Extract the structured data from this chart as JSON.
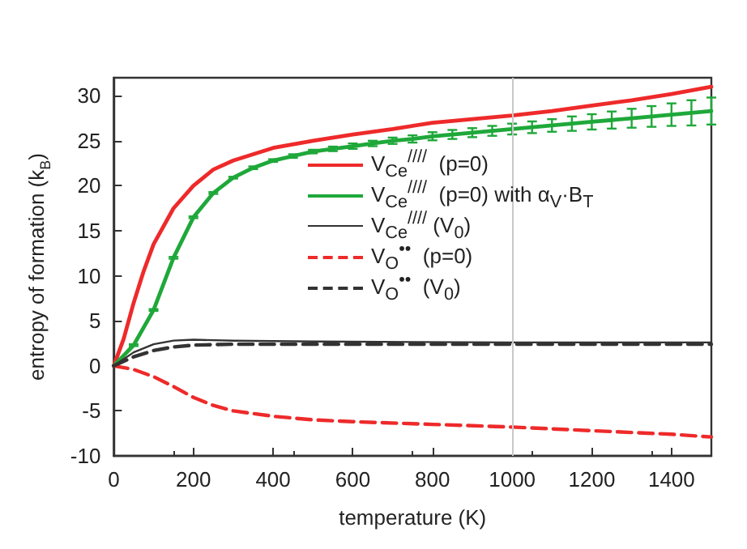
{
  "chart_data": {
    "type": "line",
    "xlabel": "temperature (K)",
    "ylabel": "entropy of formation (k$_{B}$)",
    "xlim": [
      0,
      1500
    ],
    "ylim": [
      -10,
      32
    ],
    "xticks": [
      0,
      200,
      400,
      600,
      800,
      1000,
      1200,
      1400
    ],
    "yticks": [
      -10,
      -5,
      0,
      5,
      10,
      15,
      20,
      25,
      30
    ],
    "grid": false,
    "legend": "right",
    "marker": "none",
    "ref_lines": [
      {
        "axis": "x",
        "value": 1000,
        "color": "#c8c8c8",
        "line_style": "solid"
      }
    ],
    "series": [
      {
        "name": "V$_{Ce}$$^{////}$  (p=0)",
        "color": "#ee2a2a",
        "line_style": "solid",
        "x": [
          0,
          25,
          50,
          75,
          100,
          150,
          200,
          250,
          300,
          400,
          500,
          600,
          700,
          800,
          900,
          1000,
          1100,
          1200,
          1300,
          1400,
          1500
        ],
        "values": [
          0,
          3,
          7,
          10.5,
          13.5,
          17.5,
          20,
          21.8,
          22.8,
          24.2,
          25,
          25.7,
          26.3,
          27,
          27.4,
          27.8,
          28.3,
          28.9,
          29.5,
          30.2,
          31
        ]
      },
      {
        "name": "V$_{Ce}$$^{////}$  (p=0) with α$_{V}$·B$_{T}$",
        "color": "#1fa83a",
        "line_style": "solid",
        "x": [
          0,
          50,
          100,
          150,
          200,
          250,
          300,
          350,
          400,
          450,
          500,
          550,
          600,
          650,
          700,
          750,
          800,
          850,
          900,
          950,
          1000,
          1050,
          1100,
          1150,
          1200,
          1250,
          1300,
          1350,
          1400,
          1450,
          1500
        ],
        "values": [
          0,
          2.3,
          6.2,
          12,
          16.5,
          19.2,
          20.9,
          22,
          22.8,
          23.3,
          23.8,
          24.1,
          24.4,
          24.7,
          25,
          25.2,
          25.5,
          25.7,
          25.9,
          26.1,
          26.3,
          26.5,
          26.7,
          26.9,
          27.1,
          27.3,
          27.5,
          27.7,
          27.9,
          28.1,
          28.3
        ],
        "errors": [
          null,
          0.1,
          0.1,
          0.1,
          0.1,
          0.1,
          0.1,
          0.15,
          0.15,
          0.2,
          0.2,
          0.25,
          0.3,
          0.3,
          0.35,
          0.4,
          0.45,
          0.5,
          0.5,
          0.55,
          0.6,
          0.65,
          0.7,
          0.8,
          0.85,
          0.95,
          1.05,
          1.15,
          1.25,
          1.4,
          1.5
        ]
      },
      {
        "name": "V$_{Ce}$$^{////}$ (V$_{0}$)",
        "color": "#333333",
        "line_style": "solid",
        "x": [
          0,
          50,
          100,
          150,
          200,
          300,
          500,
          1000,
          1500
        ],
        "values": [
          0,
          1.5,
          2.4,
          2.8,
          2.9,
          2.8,
          2.7,
          2.6,
          2.6
        ]
      },
      {
        "name": "V$_{O}$$^{••}$  (p=0)",
        "color": "#ee2a2a",
        "line_style": "dashed",
        "x": [
          0,
          50,
          100,
          150,
          200,
          250,
          300,
          400,
          500,
          600,
          800,
          1000,
          1200,
          1400,
          1500
        ],
        "values": [
          0,
          -0.4,
          -1.2,
          -2.3,
          -3.5,
          -4.4,
          -5,
          -5.6,
          -6,
          -6.2,
          -6.5,
          -6.8,
          -7.2,
          -7.6,
          -7.9
        ]
      },
      {
        "name": "V$_{O}$$^{••}$  (V$_{0}$)",
        "color": "#333333",
        "line_style": "dashed",
        "x": [
          0,
          50,
          100,
          150,
          200,
          300,
          500,
          1000,
          1500
        ],
        "values": [
          0,
          1,
          1.7,
          2.1,
          2.3,
          2.4,
          2.4,
          2.4,
          2.4
        ]
      }
    ]
  }
}
